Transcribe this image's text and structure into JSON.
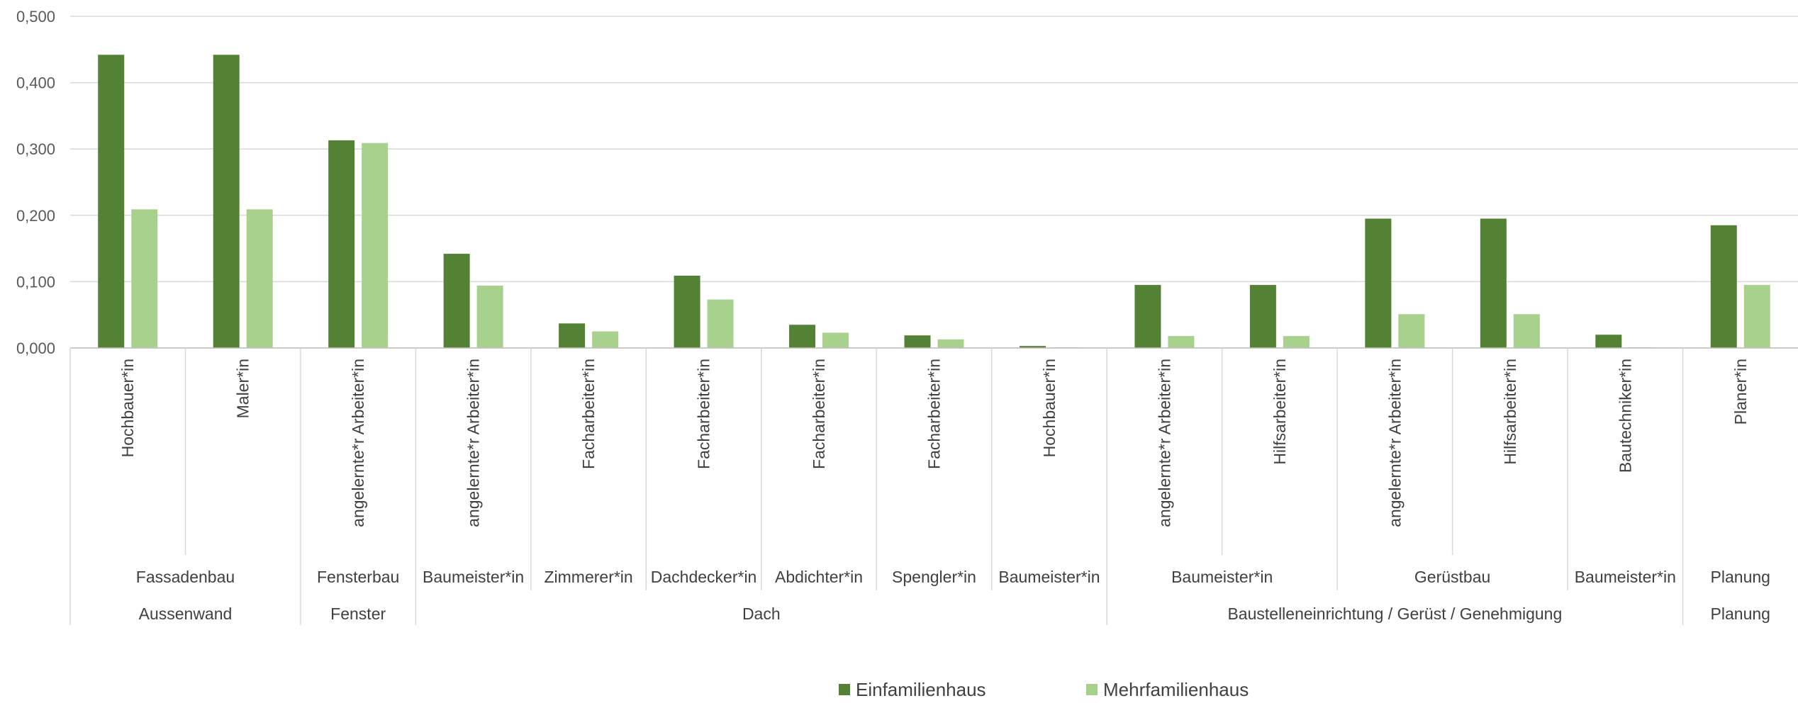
{
  "chart_data": {
    "type": "bar",
    "title": "",
    "xlabel": "",
    "ylabel": "",
    "ylim": [
      0,
      0.5
    ],
    "y_ticks": [
      "0,000",
      "0,100",
      "0,200",
      "0,300",
      "0,400",
      "0,500"
    ],
    "grid": true,
    "legend_position": "bottom",
    "categories": [
      "Hochbauer*in",
      "Maler*in",
      "angelernte*r Arbeiter*in",
      "angelernte*r Arbeiter*in",
      "Facharbeiter*in",
      "Facharbeiter*in",
      "Facharbeiter*in",
      "Facharbeiter*in",
      "Hochbauer*in",
      "angelernte*r Arbeiter*in",
      "Hilfsarbeiter*in",
      "angelernte*r Arbeiter*in",
      "Hilfsarbeiter*in",
      "Bautechniker*in",
      "Planer*in"
    ],
    "subgroups": [
      {
        "label": "Fassadenbau",
        "span": 2
      },
      {
        "label": "Fensterbau",
        "span": 1
      },
      {
        "label": "Baumeister*in",
        "span": 1
      },
      {
        "label": "Zimmerer*in",
        "span": 1
      },
      {
        "label": "Dachdecker*in",
        "span": 1
      },
      {
        "label": "Abdichter*in",
        "span": 1
      },
      {
        "label": "Spengler*in",
        "span": 1
      },
      {
        "label": "Baumeister*in",
        "span": 1
      },
      {
        "label": "Baumeister*in",
        "span": 2
      },
      {
        "label": "Gerüstbau",
        "span": 2
      },
      {
        "label": "Baumeister*in",
        "span": 1
      },
      {
        "label": "Planung",
        "span": 1
      }
    ],
    "groups": [
      {
        "label": "Aussenwand",
        "span": 2
      },
      {
        "label": "Fenster",
        "span": 1
      },
      {
        "label": "Dach",
        "span": 6
      },
      {
        "label": "Baustelleneinrichtung / Gerüst / Genehmigung",
        "span": 5
      },
      {
        "label": "Planung",
        "span": 1
      }
    ],
    "series": [
      {
        "name": "Einfamilienhaus",
        "color": "#548235",
        "values": [
          0.442,
          0.442,
          0.313,
          0.142,
          0.037,
          0.109,
          0.035,
          0.019,
          0.003,
          0.095,
          0.095,
          0.195,
          0.195,
          0.02,
          0.185
        ]
      },
      {
        "name": "Mehrfamilienhaus",
        "color": "#A9D18E",
        "values": [
          0.209,
          0.209,
          0.309,
          0.094,
          0.025,
          0.073,
          0.023,
          0.013,
          0.001,
          0.018,
          0.018,
          0.051,
          0.051,
          0.001,
          0.095
        ]
      }
    ]
  }
}
